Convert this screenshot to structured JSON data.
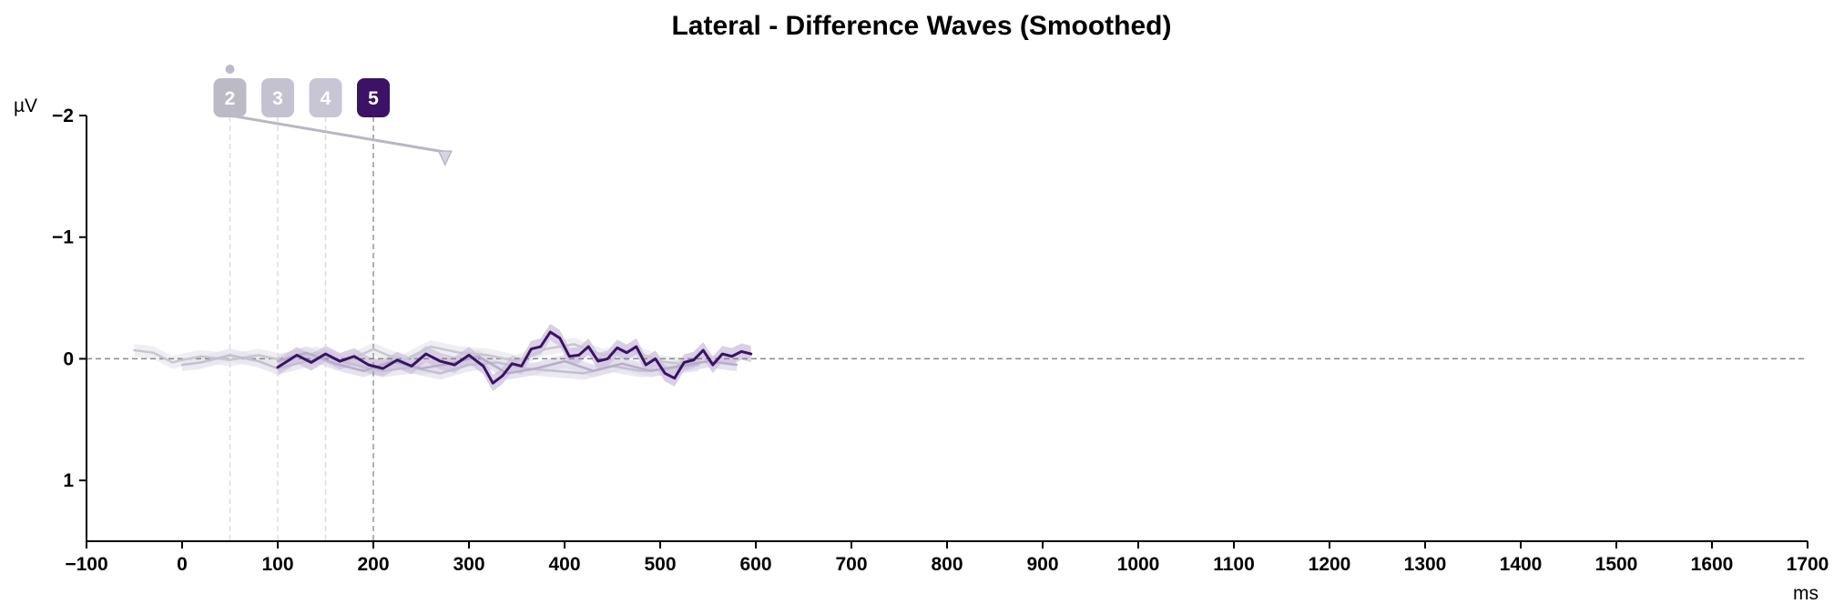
{
  "chart_data": {
    "type": "line",
    "title": "Lateral - Difference Waves (Smoothed)",
    "xlabel": "ms",
    "ylabel": "µV",
    "xlim": [
      -100,
      1700
    ],
    "ylim": [
      -2,
      1.5
    ],
    "y_inverted": true,
    "x_ticks": [
      -100,
      0,
      100,
      200,
      300,
      400,
      500,
      600,
      700,
      800,
      900,
      1000,
      1100,
      1200,
      1300,
      1400,
      1500,
      1600,
      1700
    ],
    "x_tick_labels": [
      "−100",
      "0",
      "100",
      "200",
      "300",
      "400",
      "500",
      "600",
      "700",
      "800",
      "900",
      "1000",
      "1100",
      "1200",
      "1300",
      "1400",
      "1500",
      "1600",
      "1700"
    ],
    "y_ticks": [
      -2,
      -1,
      0,
      1
    ],
    "y_tick_labels": [
      "−2",
      "−1",
      "0",
      "1"
    ],
    "zero_line": true,
    "grid": false,
    "markers": [
      {
        "label": "2",
        "x": 50,
        "active": false,
        "color": "#bdbac8"
      },
      {
        "label": "3",
        "x": 100,
        "active": false,
        "color": "#c4c1d0"
      },
      {
        "label": "4",
        "x": 150,
        "active": false,
        "color": "#c8c5d5"
      },
      {
        "label": "5",
        "x": 200,
        "active": true,
        "color": "#3b1266"
      }
    ],
    "slider": {
      "x_start": 50,
      "y_start": -2,
      "x_end": 275,
      "y_end": -1.7
    },
    "series": [
      {
        "color": "#c8c6cf",
        "band_color": "#ebeaf0",
        "x": [
          -50,
          -30,
          -10,
          0,
          20,
          50,
          80,
          110,
          140,
          170,
          200,
          230,
          260,
          290,
          320,
          350,
          380,
          410,
          440,
          470,
          500,
          530,
          550
        ],
        "y": [
          -0.07,
          -0.05,
          0.03,
          0.01,
          -0.02,
          0.01,
          -0.03,
          0.02,
          -0.05,
          0.03,
          -0.08,
          0.02,
          -0.1,
          -0.05,
          -0.03,
          0.02,
          -0.08,
          -0.12,
          -0.03,
          -0.07,
          0.02,
          0.05,
          0.02
        ]
      },
      {
        "color": "#c3bfcf",
        "band_color": "#e6e3ee",
        "x": [
          0,
          20,
          50,
          80,
          100,
          120,
          150,
          180,
          210,
          240,
          270,
          300,
          330,
          360,
          390,
          420,
          450,
          480,
          510,
          540
        ],
        "y": [
          0.05,
          0.03,
          -0.03,
          0.02,
          0.08,
          0.04,
          -0.02,
          0.05,
          0.1,
          0.07,
          0.12,
          0.05,
          0.03,
          0.08,
          0.1,
          0.12,
          0.06,
          0.1,
          0.08,
          0.05
        ]
      },
      {
        "color": "#b6aec9",
        "band_color": "#e0dbea",
        "x": [
          100,
          130,
          160,
          190,
          220,
          250,
          280,
          310,
          340,
          370,
          400,
          430,
          460,
          490,
          520,
          550,
          580
        ],
        "y": [
          0.02,
          -0.05,
          0.04,
          0.1,
          0.02,
          0.08,
          0.04,
          -0.02,
          0.12,
          0.08,
          0.02,
          0.1,
          0.04,
          0.1,
          0.06,
          0.02,
          0.05
        ]
      },
      {
        "color": "#3b1266",
        "band_color": "#cfc3e0",
        "x": [
          100,
          110,
          120,
          135,
          150,
          165,
          180,
          195,
          210,
          225,
          240,
          255,
          270,
          285,
          300,
          315,
          325,
          335,
          345,
          355,
          365,
          375,
          385,
          395,
          405,
          415,
          425,
          435,
          445,
          455,
          465,
          475,
          485,
          495,
          505,
          515,
          525,
          535,
          545,
          555,
          565,
          575,
          585,
          595
        ],
        "y": [
          0.07,
          0.02,
          -0.03,
          0.03,
          -0.04,
          0.02,
          -0.02,
          0.05,
          0.08,
          0.01,
          0.06,
          -0.04,
          0.02,
          0.05,
          -0.03,
          0.06,
          0.2,
          0.14,
          0.04,
          0.06,
          -0.08,
          -0.1,
          -0.22,
          -0.17,
          -0.02,
          -0.03,
          -0.1,
          0.02,
          0.0,
          -0.09,
          -0.05,
          -0.1,
          0.05,
          0.0,
          0.12,
          0.16,
          0.03,
          0.01,
          -0.07,
          0.05,
          -0.04,
          -0.02,
          -0.06,
          -0.04
        ]
      }
    ]
  }
}
